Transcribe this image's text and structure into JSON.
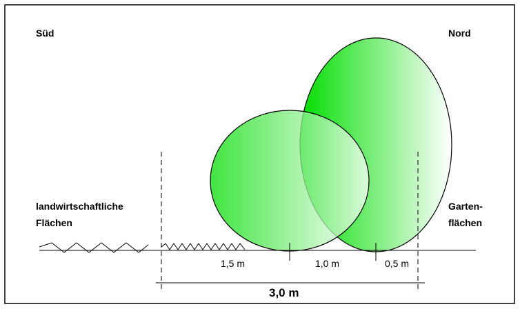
{
  "labels": {
    "south": "Süd",
    "north": "Nord",
    "left_area": [
      "landwirtschaftliche",
      "Flächen"
    ],
    "right_area": [
      "Garten-",
      "flächen"
    ]
  },
  "dimensions": {
    "segments": [
      "1,5 m",
      "1,0 m",
      "0,5 m"
    ],
    "total": "3,0 m"
  }
}
